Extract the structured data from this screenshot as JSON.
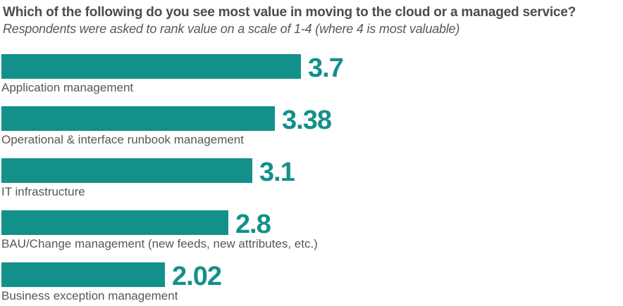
{
  "header": {
    "title": "Which of the following do you see most value in moving to the cloud or a managed service?",
    "subtitle": "Respondents were asked to rank value on a scale of 1-4 (where 4 is most valuable)"
  },
  "colors": {
    "bar": "#13908a",
    "value_text": "#13908a",
    "title_text": "#4c4c4e",
    "subtitle_text": "#58585a",
    "label_text": "#5a5559",
    "background": "#ffffff"
  },
  "chart_data": {
    "type": "bar",
    "orientation": "horizontal",
    "title": "Which of the following do you see most value in moving to the cloud or a managed service?",
    "subtitle": "Respondents were asked to rank value on a scale of 1-4 (where 4 is most valuable)",
    "scale": {
      "min": 1,
      "max": 4,
      "note": "4 is most valuable"
    },
    "xlabel": "",
    "ylabel": "",
    "grid": false,
    "legend": false,
    "categories": [
      "Application management",
      "Operational & interface runbook management",
      "IT infrastructure",
      "BAU/Change management (new feeds, new attributes, etc.)",
      "Business exception management"
    ],
    "values": [
      3.7,
      3.38,
      3.1,
      2.8,
      2.02
    ],
    "value_labels": [
      "3.7",
      "3.38",
      "3.1",
      "2.8",
      "2.02"
    ]
  }
}
